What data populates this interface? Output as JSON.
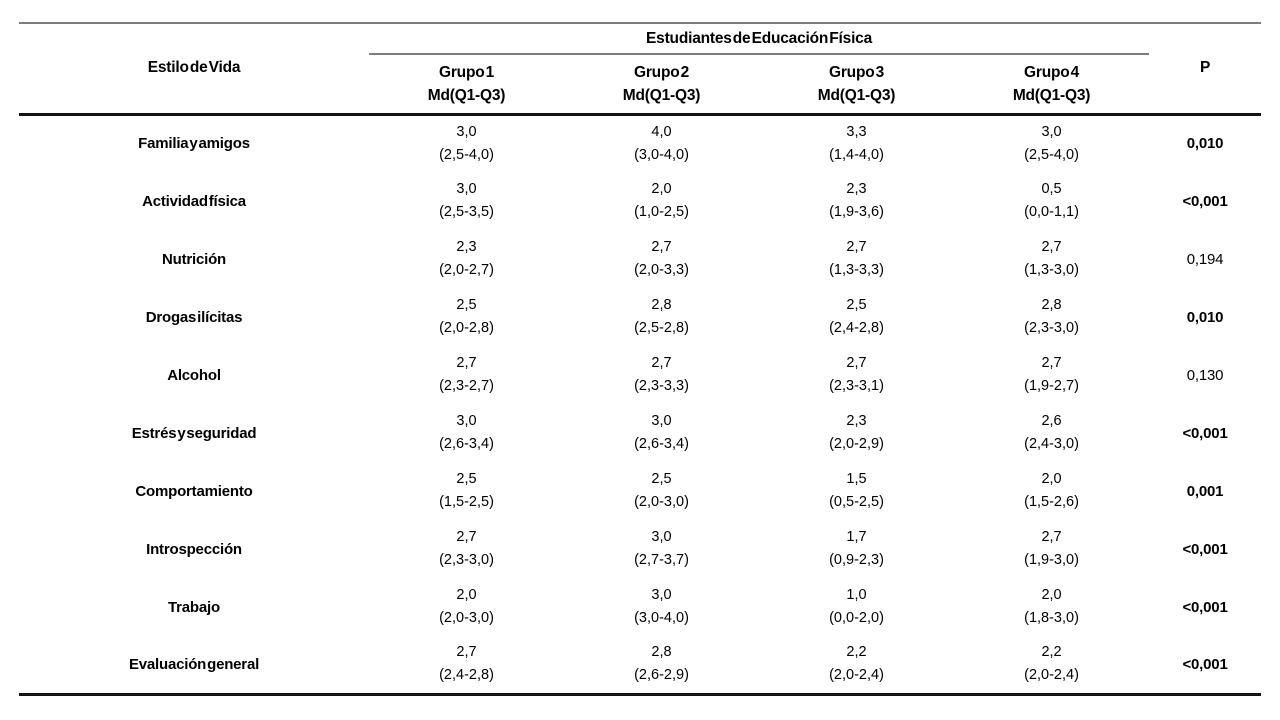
{
  "colors": {
    "background": "#ffffff",
    "text": "#000000",
    "rule_gray": "#7d7d7d",
    "rule_black": "#141414"
  },
  "table": {
    "col1_header": "Estilo de Vida",
    "group_span_header": "Estudiantes de Educación Física",
    "p_header": "P",
    "groups": [
      {
        "name": "Grupo 1",
        "stat": "Md(Q1-Q3)"
      },
      {
        "name": "Grupo 2",
        "stat": "Md(Q1-Q3)"
      },
      {
        "name": "Grupo 3",
        "stat": "Md(Q1-Q3)"
      },
      {
        "name": "Grupo 4",
        "stat": "Md(Q1-Q3)"
      }
    ],
    "rows": [
      {
        "label": "Familia y amigos",
        "groups": [
          {
            "md": "3,0",
            "iqr": "(2,5-4,0)"
          },
          {
            "md": "4,0",
            "iqr": "(3,0-4,0)"
          },
          {
            "md": "3,3",
            "iqr": "(1,4-4,0)"
          },
          {
            "md": "3,0",
            "iqr": "(2,5-4,0)"
          }
        ],
        "p": "0,010",
        "p_significant": true
      },
      {
        "label": "Actividad física",
        "groups": [
          {
            "md": "3,0",
            "iqr": "(2,5-3,5)"
          },
          {
            "md": "2,0",
            "iqr": "(1,0-2,5)"
          },
          {
            "md": "2,3",
            "iqr": "(1,9-3,6)"
          },
          {
            "md": "0,5",
            "iqr": "(0,0-1,1)"
          }
        ],
        "p": "<0,001",
        "p_significant": true
      },
      {
        "label": "Nutrición",
        "groups": [
          {
            "md": "2,3",
            "iqr": "(2,0-2,7)"
          },
          {
            "md": "2,7",
            "iqr": "(2,0-3,3)"
          },
          {
            "md": "2,7",
            "iqr": "(1,3-3,3)"
          },
          {
            "md": "2,7",
            "iqr": "(1,3-3,0)"
          }
        ],
        "p": "0,194",
        "p_significant": false
      },
      {
        "label": "Drogas ilícitas",
        "groups": [
          {
            "md": "2,5",
            "iqr": "(2,0-2,8)"
          },
          {
            "md": "2,8",
            "iqr": "(2,5-2,8)"
          },
          {
            "md": "2,5",
            "iqr": "(2,4-2,8)"
          },
          {
            "md": "2,8",
            "iqr": "(2,3-3,0)"
          }
        ],
        "p": "0,010",
        "p_significant": true
      },
      {
        "label": "Alcohol",
        "groups": [
          {
            "md": "2,7",
            "iqr": "(2,3-2,7)"
          },
          {
            "md": "2,7",
            "iqr": "(2,3-3,3)"
          },
          {
            "md": "2,7",
            "iqr": "(2,3-3,1)"
          },
          {
            "md": "2,7",
            "iqr": "(1,9-2,7)"
          }
        ],
        "p": "0,130",
        "p_significant": false
      },
      {
        "label": "Estrés y seguridad",
        "groups": [
          {
            "md": "3,0",
            "iqr": "(2,6-3,4)"
          },
          {
            "md": "3,0",
            "iqr": "(2,6-3,4)"
          },
          {
            "md": "2,3",
            "iqr": "(2,0-2,9)"
          },
          {
            "md": "2,6",
            "iqr": "(2,4-3,0)"
          }
        ],
        "p": "<0,001",
        "p_significant": true
      },
      {
        "label": "Comportamiento",
        "groups": [
          {
            "md": "2,5",
            "iqr": "(1,5-2,5)"
          },
          {
            "md": "2,5",
            "iqr": "(2,0-3,0)"
          },
          {
            "md": "1,5",
            "iqr": "(0,5-2,5)"
          },
          {
            "md": "2,0",
            "iqr": "(1,5-2,6)"
          }
        ],
        "p": "0,001",
        "p_significant": true
      },
      {
        "label": "Introspección",
        "groups": [
          {
            "md": "2,7",
            "iqr": "(2,3-3,0)"
          },
          {
            "md": "3,0",
            "iqr": "(2,7-3,7)"
          },
          {
            "md": "1,7",
            "iqr": "(0,9-2,3)"
          },
          {
            "md": "2,7",
            "iqr": "(1,9-3,0)"
          }
        ],
        "p": "<0,001",
        "p_significant": true
      },
      {
        "label": "Trabajo",
        "groups": [
          {
            "md": "2,0",
            "iqr": "(2,0-3,0)"
          },
          {
            "md": "3,0",
            "iqr": "(3,0-4,0)"
          },
          {
            "md": "1,0",
            "iqr": "(0,0-2,0)"
          },
          {
            "md": "2,0",
            "iqr": "(1,8-3,0)"
          }
        ],
        "p": "<0,001",
        "p_significant": true
      },
      {
        "label": "Evaluación general",
        "groups": [
          {
            "md": "2,7",
            "iqr": "(2,4-2,8)"
          },
          {
            "md": "2,8",
            "iqr": "(2,6-2,9)"
          },
          {
            "md": "2,2",
            "iqr": "(2,0-2,4)"
          },
          {
            "md": "2,2",
            "iqr": "(2,0-2,4)"
          }
        ],
        "p": "<0,001",
        "p_significant": true
      }
    ]
  }
}
